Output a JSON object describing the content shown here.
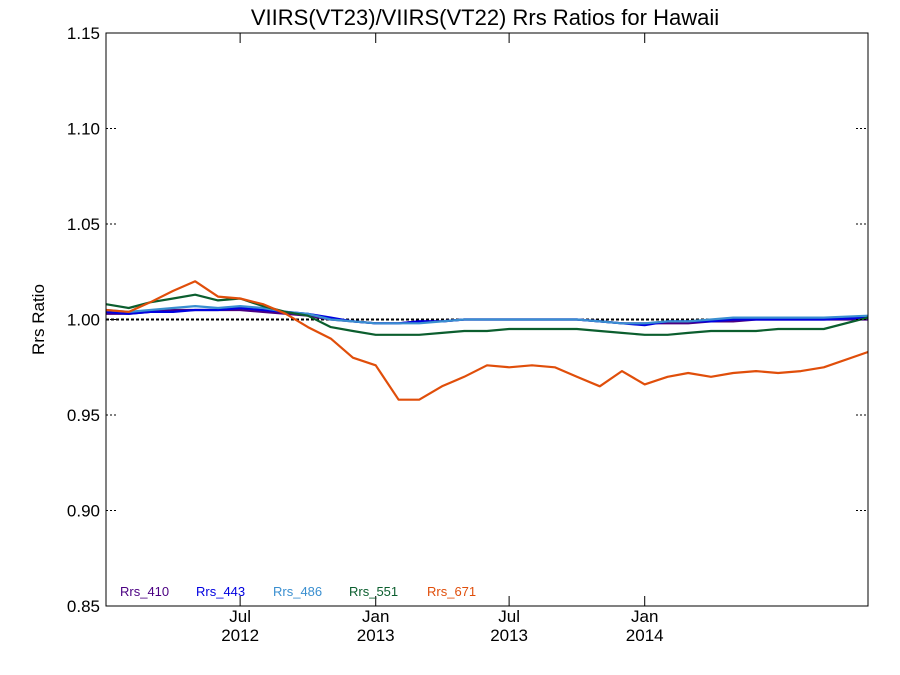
{
  "chart_data": {
    "type": "line",
    "title": "VIIRS(VT23)/VIIRS(VT22)  Rrs Ratios for Hawaii",
    "ylabel": "Rrs Ratio",
    "xlabel": "",
    "ylim": [
      0.85,
      1.15
    ],
    "xlim": [
      "2012-01-01",
      "2014-10-31"
    ],
    "yticks": [
      {
        "value": 0.85,
        "label": "0.85"
      },
      {
        "value": 0.9,
        "label": "0.90"
      },
      {
        "value": 0.95,
        "label": "0.95"
      },
      {
        "value": 1.0,
        "label": "1.00"
      },
      {
        "value": 1.05,
        "label": "1.05"
      },
      {
        "value": 1.1,
        "label": "1.10"
      },
      {
        "value": 1.15,
        "label": "1.15"
      }
    ],
    "xticks": [
      {
        "date": "2012-07-01",
        "month": "Jul",
        "year": "2012"
      },
      {
        "date": "2013-01-01",
        "month": "Jan",
        "year": "2013"
      },
      {
        "date": "2013-07-01",
        "month": "Jul",
        "year": "2013"
      },
      {
        "date": "2014-01-01",
        "month": "Jan",
        "year": "2014"
      }
    ],
    "reference_line": {
      "value": 1.0,
      "style": "dotted"
    },
    "legend_placement": "bottom-left",
    "x": [
      "2012-01-01",
      "2012-02-01",
      "2012-03-01",
      "2012-04-01",
      "2012-05-01",
      "2012-06-01",
      "2012-07-01",
      "2012-08-01",
      "2012-09-01",
      "2012-10-01",
      "2012-11-01",
      "2012-12-01",
      "2013-01-01",
      "2013-02-01",
      "2013-03-01",
      "2013-04-01",
      "2013-05-01",
      "2013-06-01",
      "2013-07-01",
      "2013-08-01",
      "2013-09-01",
      "2013-10-01",
      "2013-11-01",
      "2013-12-01",
      "2014-01-01",
      "2014-02-01",
      "2014-03-01",
      "2014-04-01",
      "2014-05-01",
      "2014-06-01",
      "2014-07-01",
      "2014-08-01",
      "2014-09-01",
      "2014-10-31"
    ],
    "series": [
      {
        "name": "Rrs_410",
        "color": "#4B0082",
        "values": [
          1.003,
          1.003,
          1.004,
          1.005,
          1.005,
          1.005,
          1.005,
          1.004,
          1.003,
          1.002,
          1.0,
          0.999,
          0.998,
          0.998,
          0.999,
          0.999,
          1.0,
          1.0,
          1.0,
          1.0,
          1.0,
          1.0,
          0.999,
          0.998,
          0.998,
          0.998,
          0.998,
          0.999,
          0.999,
          1.0,
          1.0,
          1.0,
          1.0,
          1.0
        ]
      },
      {
        "name": "Rrs_443",
        "color": "#0000E0",
        "values": [
          1.004,
          1.003,
          1.004,
          1.004,
          1.005,
          1.005,
          1.006,
          1.005,
          1.004,
          1.003,
          1.001,
          0.999,
          0.998,
          0.998,
          0.999,
          0.999,
          1.0,
          1.0,
          1.0,
          1.0,
          1.0,
          1.0,
          0.999,
          0.998,
          0.997,
          0.999,
          0.999,
          0.999,
          1.0,
          1.0,
          1.0,
          1.0,
          1.0,
          1.001
        ]
      },
      {
        "name": "Rrs_486",
        "color": "#3A8FD0",
        "values": [
          1.005,
          1.004,
          1.005,
          1.006,
          1.007,
          1.006,
          1.007,
          1.006,
          1.004,
          1.003,
          1.0,
          0.999,
          0.998,
          0.998,
          0.998,
          0.999,
          1.0,
          1.0,
          1.0,
          1.0,
          1.0,
          1.0,
          0.999,
          0.998,
          0.998,
          0.999,
          0.999,
          1.0,
          1.001,
          1.001,
          1.001,
          1.001,
          1.001,
          1.002
        ]
      },
      {
        "name": "Rrs_551",
        "color": "#0B5E2E",
        "values": [
          1.008,
          1.006,
          1.009,
          1.011,
          1.013,
          1.01,
          1.011,
          1.007,
          1.004,
          1.002,
          0.996,
          0.994,
          0.992,
          0.992,
          0.992,
          0.993,
          0.994,
          0.994,
          0.995,
          0.995,
          0.995,
          0.995,
          0.994,
          0.993,
          0.992,
          0.992,
          0.993,
          0.994,
          0.994,
          0.994,
          0.995,
          0.995,
          0.995,
          1.001
        ]
      },
      {
        "name": "Rrs_671",
        "color": "#E04E0A",
        "values": [
          1.005,
          1.004,
          1.009,
          1.015,
          1.02,
          1.012,
          1.011,
          1.008,
          1.003,
          0.996,
          0.99,
          0.98,
          0.976,
          0.958,
          0.958,
          0.965,
          0.97,
          0.976,
          0.975,
          0.976,
          0.975,
          0.97,
          0.965,
          0.973,
          0.966,
          0.97,
          0.972,
          0.97,
          0.972,
          0.973,
          0.972,
          0.973,
          0.975,
          0.983
        ]
      }
    ]
  }
}
